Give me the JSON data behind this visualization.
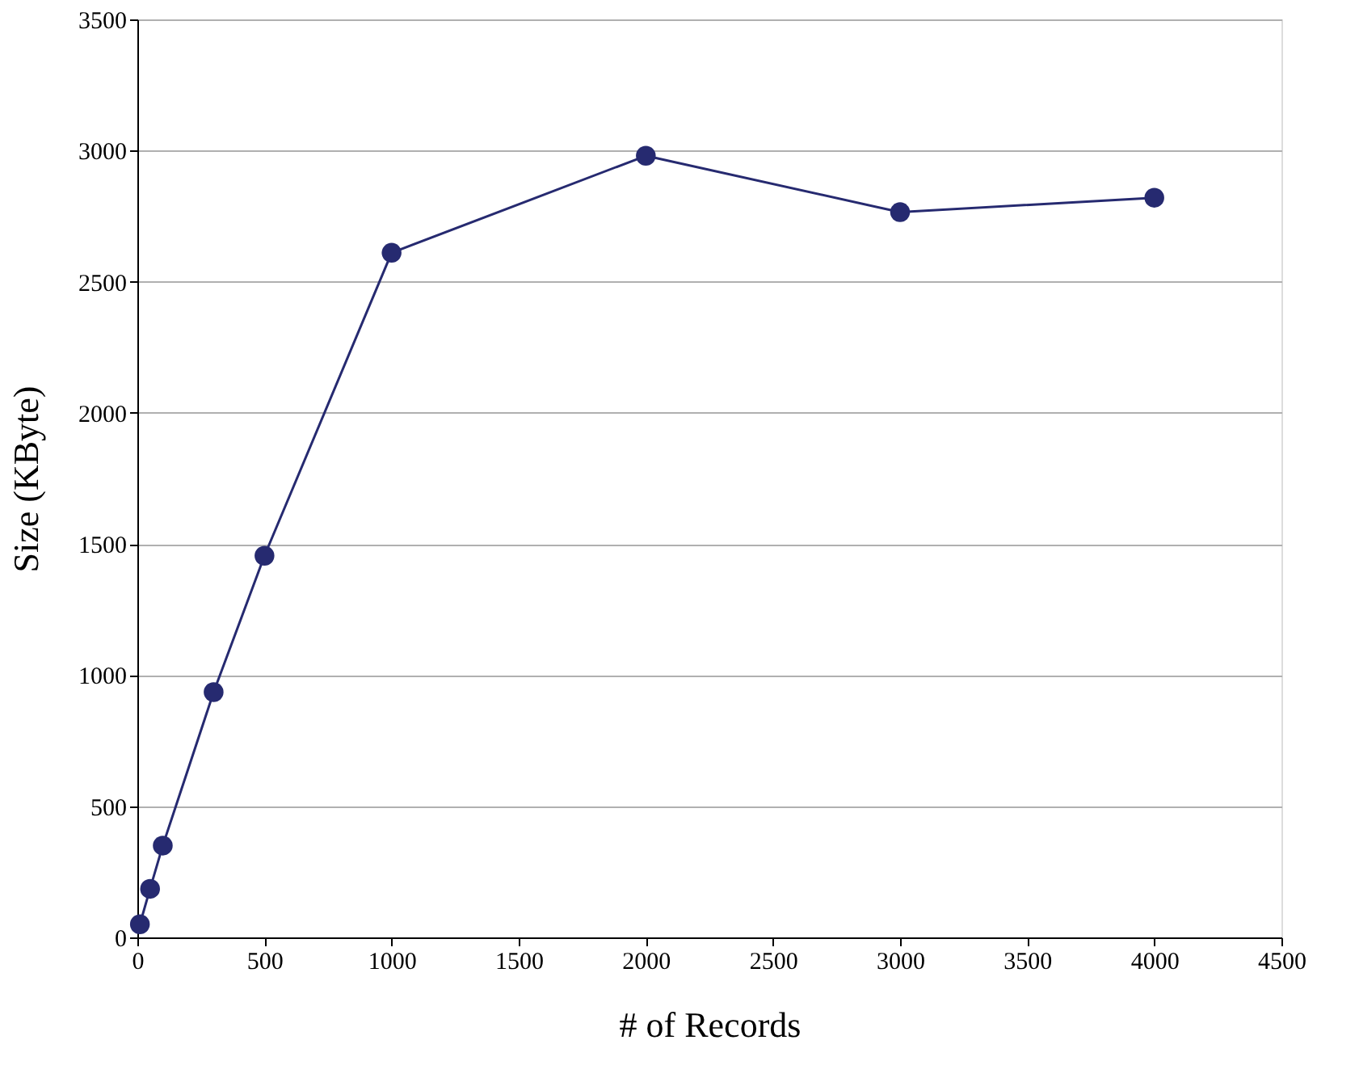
{
  "chart_data": {
    "type": "line",
    "xlabel": "# of Records",
    "ylabel": "Size (KByte)",
    "x": [
      10,
      50,
      100,
      300,
      500,
      1000,
      2000,
      3000,
      4000
    ],
    "series": [
      {
        "color": "#262a70",
        "values": [
          50,
          185,
          350,
          935,
          1455,
          2610,
          2980,
          2765,
          2820
        ]
      }
    ],
    "xlim": [
      0,
      4500
    ],
    "xticks": [
      0,
      500,
      1000,
      1500,
      2000,
      2500,
      3000,
      3500,
      4000,
      4500
    ],
    "ylim": [
      0,
      3500
    ],
    "yticks": [
      0,
      500,
      1000,
      1500,
      2000,
      2500,
      3000,
      3500
    ],
    "grid": "y",
    "marker": "circle",
    "line_style": "solid"
  }
}
